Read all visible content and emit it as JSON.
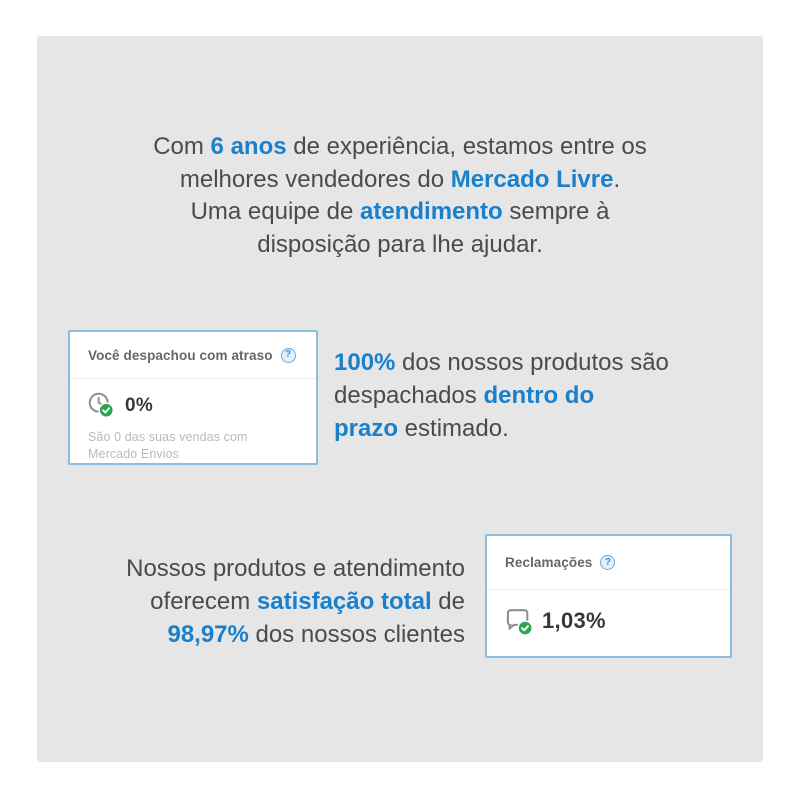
{
  "colors": {
    "accent_blue": "#1a80cc",
    "card_border_blue": "#8abde2",
    "success_green": "#2aa64f",
    "panel_gray": "#e6e6e7",
    "text_dark": "#4b4b4b",
    "muted_gray": "#bcb9b9"
  },
  "intro": {
    "lines": [
      [
        {
          "t": "Com "
        },
        {
          "t": "6 anos",
          "hl": true
        },
        {
          "t": " de experiência, estamos entre os"
        }
      ],
      [
        {
          "t": "melhores vendedores do "
        },
        {
          "t": "Mercado Livre",
          "hl": true
        },
        {
          "t": "."
        }
      ],
      [
        {
          "t": "Uma equipe de "
        },
        {
          "t": "atendimento",
          "hl": true
        },
        {
          "t": " sempre à"
        }
      ],
      [
        {
          "t": "disposição para lhe ajudar."
        }
      ]
    ]
  },
  "shipping_card": {
    "title": "Você despachou com atraso",
    "help_glyph": "?",
    "metric": "0%",
    "note": "São 0 das suas vendas com Mercado Envios"
  },
  "shipping_text": {
    "lines": [
      [
        {
          "t": "100%",
          "hl": true
        },
        {
          "t": " dos nossos produtos são"
        }
      ],
      [
        {
          "t": "despachados "
        },
        {
          "t": "dentro do",
          "hl": true
        }
      ],
      [
        {
          "t": "prazo",
          "hl": true
        },
        {
          "t": " estimado."
        }
      ]
    ]
  },
  "satisfaction_text": {
    "lines": [
      [
        {
          "t": "Nossos produtos e atendimento"
        }
      ],
      [
        {
          "t": "oferecem "
        },
        {
          "t": "satisfação total",
          "hl": true
        },
        {
          "t": " de"
        }
      ],
      [
        {
          "t": "98,97%",
          "hl": true
        },
        {
          "t": " dos nossos clientes"
        }
      ]
    ]
  },
  "claims_card": {
    "title": "Reclamações",
    "help_glyph": "?",
    "metric": "1,03%"
  }
}
